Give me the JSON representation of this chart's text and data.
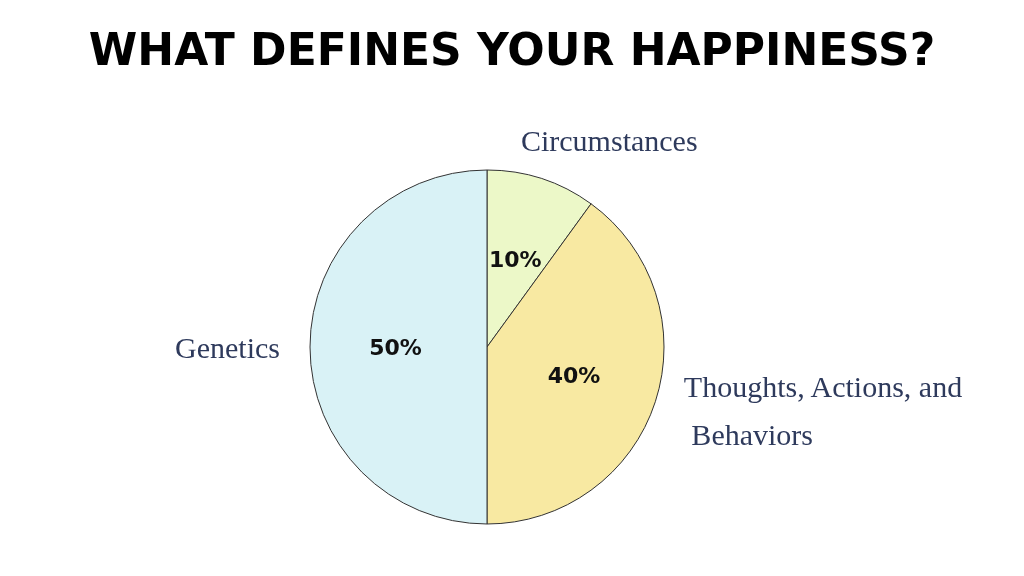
{
  "chart_data": {
    "type": "pie",
    "title": "WHAT DEFINES YOUR HAPPINESS?",
    "categories": [
      "Circumstances",
      "Thoughts, Actions, and Behaviors",
      "Genetics"
    ],
    "values": [
      10,
      40,
      50
    ],
    "value_labels": [
      "10%",
      "40%",
      "50%"
    ],
    "colors": [
      "#ecf8c8",
      "#f8e9a2",
      "#d9f2f6"
    ],
    "legend": false
  }
}
